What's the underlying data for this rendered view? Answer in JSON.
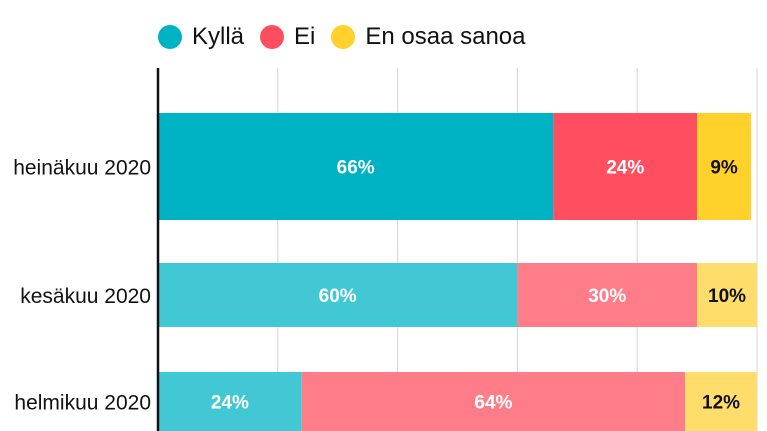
{
  "chart_data": {
    "type": "bar",
    "orientation": "horizontal",
    "stacked": true,
    "categories": [
      "heinäkuu 2020",
      "kesäkuu 2020",
      "helmikuu 2020"
    ],
    "series": [
      {
        "name": "Kyllä",
        "values": [
          66,
          60,
          24
        ],
        "labels": [
          "66%",
          "60%",
          "24%"
        ],
        "color": "#00b3c4"
      },
      {
        "name": "Ei",
        "values": [
          24,
          30,
          64
        ],
        "labels": [
          "24%",
          "30%",
          "64%"
        ],
        "color": "#ff4e5f"
      },
      {
        "name": "En osaa sanoa",
        "values": [
          9,
          10,
          12
        ],
        "labels": [
          "9%",
          "10%",
          "12%"
        ],
        "color": "#ffd12a"
      }
    ],
    "highlight_category": "heinäkuu 2020",
    "faded_colors": {
      "Kyllä": "#42c8d4",
      "Ei": "#ff7d89",
      "En osaa sanoa": "#ffdd6b"
    },
    "label_colors": {
      "Kyllä": "#ffffff",
      "Ei": "#ffffff",
      "En osaa sanoa": "#111111"
    },
    "xlim": [
      0,
      100
    ],
    "grid": true,
    "legend_position": "top"
  }
}
